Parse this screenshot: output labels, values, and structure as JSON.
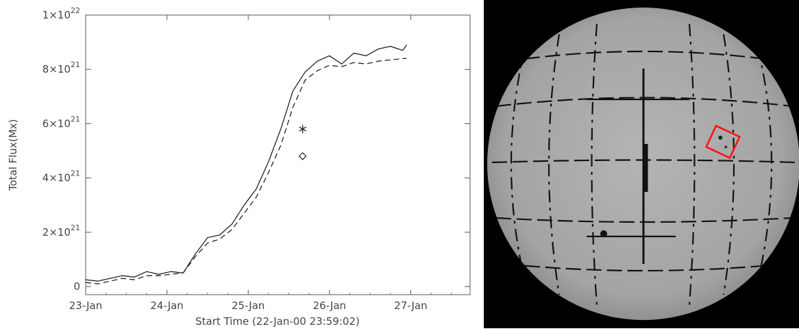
{
  "chart_data": {
    "type": "line",
    "xlabel": "Start Time (22-Jan-00 23:59:02)",
    "ylabel": "Total Flux(Mx)",
    "xlim": [
      0,
      4.73
    ],
    "ylim": [
      -3e+20,
      1e+22
    ],
    "x_ticks": [
      {
        "value": 0,
        "label": "23-Jan"
      },
      {
        "value": 1,
        "label": "24-Jan"
      },
      {
        "value": 2,
        "label": "25-Jan"
      },
      {
        "value": 3,
        "label": "26-Jan"
      },
      {
        "value": 4,
        "label": "27-Jan"
      }
    ],
    "y_ticks": [
      {
        "value": 0,
        "mantissa": "0",
        "exponent": ""
      },
      {
        "value": 2e+21,
        "mantissa": "2×10",
        "exponent": "21"
      },
      {
        "value": 4e+21,
        "mantissa": "4×10",
        "exponent": "21"
      },
      {
        "value": 6e+21,
        "mantissa": "6×10",
        "exponent": "21"
      },
      {
        "value": 8e+21,
        "mantissa": "8×10",
        "exponent": "21"
      },
      {
        "value": 1e+22,
        "mantissa": "1×10",
        "exponent": "22"
      }
    ],
    "series": [
      {
        "style": "solid",
        "x": [
          0,
          0.15,
          0.3,
          0.45,
          0.6,
          0.75,
          0.9,
          1.05,
          1.2,
          1.35,
          1.5,
          1.65,
          1.8,
          1.95,
          2.1,
          2.25,
          2.4,
          2.55,
          2.7,
          2.85,
          3.0,
          3.15,
          3.3,
          3.45,
          3.6,
          3.75,
          3.9,
          3.95
        ],
        "y": [
          2.5e+20,
          2e+20,
          3e+20,
          4e+20,
          3.5e+20,
          5.5e+20,
          4.5e+20,
          5.5e+20,
          5e+20,
          1.2e+21,
          1.8e+21,
          1.9e+21,
          2.3e+21,
          3e+21,
          3.6e+21,
          4.6e+21,
          5.8e+21,
          7.2e+21,
          7.9e+21,
          8.3e+21,
          8.5e+21,
          8.2e+21,
          8.6e+21,
          8.5e+21,
          8.75e+21,
          8.85e+21,
          8.7e+21,
          8.9e+21
        ]
      },
      {
        "style": "dashed",
        "x": [
          0,
          0.15,
          0.3,
          0.45,
          0.6,
          0.75,
          0.9,
          1.05,
          1.2,
          1.35,
          1.5,
          1.65,
          1.8,
          1.95,
          2.1,
          2.25,
          2.4,
          2.55,
          2.7,
          2.85,
          3.0,
          3.15,
          3.3,
          3.45,
          3.6,
          3.75,
          3.9,
          3.95
        ],
        "y": [
          1.5e+20,
          1e+20,
          2e+20,
          3e+20,
          2.5e+20,
          4e+20,
          4e+20,
          4.5e+20,
          5e+20,
          1.1e+21,
          1.6e+21,
          1.75e+21,
          2.1e+21,
          2.7e+21,
          3.3e+21,
          4.2e+21,
          5.2e+21,
          6.6e+21,
          7.6e+21,
          7.95e+21,
          8.15e+21,
          8.1e+21,
          8.25e+21,
          8.2e+21,
          8.3e+21,
          8.35e+21,
          8.4e+21,
          8.4e+21
        ]
      }
    ],
    "markers": [
      {
        "symbol": "star",
        "x": 2.67,
        "y": 5.8e+21
      },
      {
        "symbol": "diamond",
        "x": 2.67,
        "y": 4.8e+21
      }
    ]
  },
  "solar_disk": {
    "caption_top": "",
    "caption_bottom": ""
  }
}
